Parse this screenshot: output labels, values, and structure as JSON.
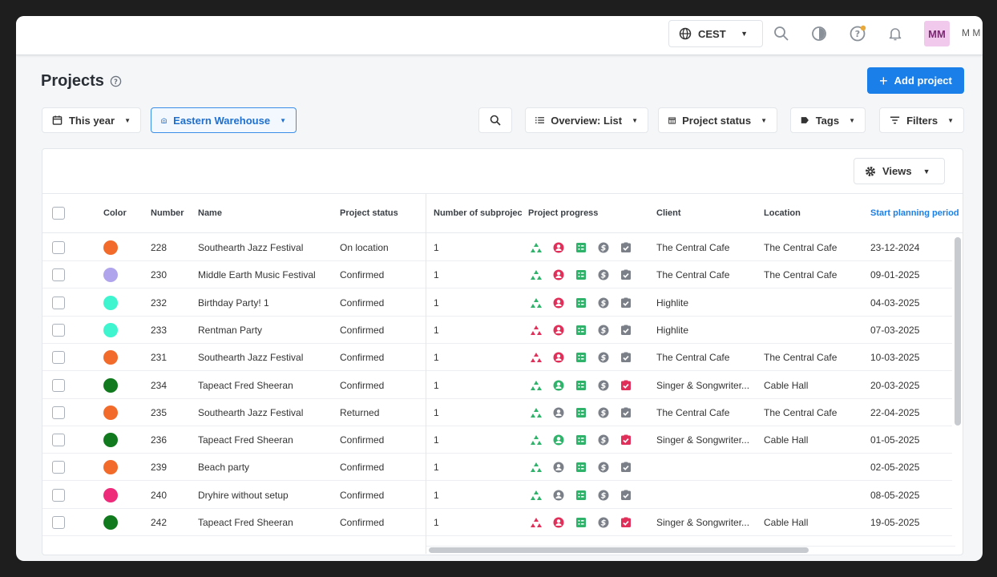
{
  "topbar": {
    "timezone": "CEST",
    "user_initials": "MM",
    "user_name": "M M"
  },
  "page": {
    "title": "Projects",
    "add_button": "Add project"
  },
  "filters": {
    "period": "This year",
    "warehouse": "Eastern Warehouse",
    "overview": "Overview: List",
    "project_status": "Project status",
    "tags": "Tags",
    "filters": "Filters"
  },
  "table": {
    "views_label": "Views",
    "columns": {
      "color": "Color",
      "number": "Number",
      "name": "Name",
      "status": "Project status",
      "subprojects": "Number of subproject",
      "progress": "Project progress",
      "client": "Client",
      "location": "Location",
      "start": "Start planning period"
    },
    "rows": [
      {
        "color": "#f26b2a",
        "number": "228",
        "name": "Southearth Jazz Festival",
        "status": "On location",
        "subprojects": "1",
        "client": "The Central Cafe",
        "location": "The Central Cafe",
        "start": "23-12-2024",
        "p1": "green",
        "p2": "red",
        "p5": "gray"
      },
      {
        "color": "#b0a4ec",
        "number": "230",
        "name": "Middle Earth Music Festival",
        "status": "Confirmed",
        "subprojects": "1",
        "client": "The Central Cafe",
        "location": "The Central Cafe",
        "start": "09-01-2025",
        "p1": "green",
        "p2": "red",
        "p5": "gray"
      },
      {
        "color": "#3ef5cf",
        "number": "232",
        "name": "Birthday Party! 1",
        "status": "Confirmed",
        "subprojects": "1",
        "client": "Highlite",
        "location": "",
        "start": "04-03-2025",
        "p1": "green",
        "p2": "red",
        "p5": "gray"
      },
      {
        "color": "#3ef5cf",
        "number": "233",
        "name": "Rentman Party",
        "status": "Confirmed",
        "subprojects": "1",
        "client": "Highlite",
        "location": "",
        "start": "07-03-2025",
        "p1": "red",
        "p2": "red",
        "p5": "gray"
      },
      {
        "color": "#f26b2a",
        "number": "231",
        "name": "Southearth Jazz Festival",
        "status": "Confirmed",
        "subprojects": "1",
        "client": "The Central Cafe",
        "location": "The Central Cafe",
        "start": "10-03-2025",
        "p1": "red",
        "p2": "red",
        "p5": "gray"
      },
      {
        "color": "#127a1e",
        "number": "234",
        "name": "Tapeact Fred Sheeran",
        "status": "Confirmed",
        "subprojects": "1",
        "client": "Singer & Songwriter...",
        "location": "Cable Hall",
        "start": "20-03-2025",
        "p1": "green",
        "p2": "green",
        "p5": "red"
      },
      {
        "color": "#f26b2a",
        "number": "235",
        "name": "Southearth Jazz Festival",
        "status": "Returned",
        "subprojects": "1",
        "client": "The Central Cafe",
        "location": "The Central Cafe",
        "start": "22-04-2025",
        "p1": "green",
        "p2": "gray",
        "p5": "gray"
      },
      {
        "color": "#127a1e",
        "number": "236",
        "name": "Tapeact Fred Sheeran",
        "status": "Confirmed",
        "subprojects": "1",
        "client": "Singer & Songwriter...",
        "location": "Cable Hall",
        "start": "01-05-2025",
        "p1": "green",
        "p2": "green",
        "p5": "red"
      },
      {
        "color": "#f26b2a",
        "number": "239",
        "name": "Beach party",
        "status": "Confirmed",
        "subprojects": "1",
        "client": "",
        "location": "",
        "start": "02-05-2025",
        "p1": "green",
        "p2": "gray",
        "p5": "gray"
      },
      {
        "color": "#ee2a7b",
        "number": "240",
        "name": "Dryhire without setup",
        "status": "Confirmed",
        "subprojects": "1",
        "client": "",
        "location": "",
        "start": "08-05-2025",
        "p1": "green",
        "p2": "gray",
        "p5": "gray"
      },
      {
        "color": "#127a1e",
        "number": "242",
        "name": "Tapeact Fred Sheeran",
        "status": "Confirmed",
        "subprojects": "1",
        "client": "Singer & Songwriter...",
        "location": "Cable Hall",
        "start": "19-05-2025",
        "p1": "red",
        "p2": "red",
        "p5": "red"
      }
    ]
  },
  "colors": {
    "accent": "#1a7fe8",
    "green": "#2fb36b",
    "red": "#e0305a",
    "gray": "#7b8088"
  }
}
